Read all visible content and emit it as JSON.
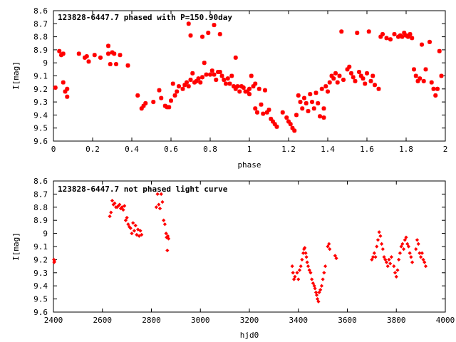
{
  "chart_data": [
    {
      "type": "scatter",
      "title": "123828-6447.7 phased with P=150.90day",
      "xlabel": "phase",
      "ylabel": "I[mag]",
      "xlim": [
        0,
        2
      ],
      "ylim": [
        9.6,
        8.6
      ],
      "y_inverted": true,
      "x_ticks": [
        0,
        0.2,
        0.4,
        0.6,
        0.8,
        1,
        1.2,
        1.4,
        1.6,
        1.8,
        2
      ],
      "x_tick_labels": [
        "0",
        "0.2",
        "0.4",
        "0.6",
        "0.8",
        "1",
        "1.2",
        "1.4",
        "1.6",
        "1.8",
        "2"
      ],
      "y_ticks": [
        8.6,
        8.7,
        8.8,
        8.9,
        9.0,
        9.1,
        9.2,
        9.3,
        9.4,
        9.5,
        9.6
      ],
      "y_tick_labels": [
        "8.6",
        "8.7",
        "8.8",
        "8.9",
        "9",
        "9.1",
        "9.2",
        "9.3",
        "9.4",
        "9.5",
        "9.6"
      ],
      "marker_color": "#ff0000",
      "points": [
        [
          0.01,
          9.19
        ],
        [
          0.03,
          8.91
        ],
        [
          0.04,
          8.94
        ],
        [
          0.05,
          8.93
        ],
        [
          0.05,
          9.15
        ],
        [
          0.06,
          9.22
        ],
        [
          0.07,
          9.2
        ],
        [
          0.07,
          9.26
        ],
        [
          0.13,
          8.93
        ],
        [
          0.16,
          8.96
        ],
        [
          0.17,
          8.95
        ],
        [
          0.18,
          8.99
        ],
        [
          0.21,
          8.94
        ],
        [
          0.24,
          8.96
        ],
        [
          0.28,
          8.93
        ],
        [
          0.28,
          8.87
        ],
        [
          0.29,
          9.01
        ],
        [
          0.3,
          8.92
        ],
        [
          0.31,
          8.93
        ],
        [
          0.32,
          9.01
        ],
        [
          0.34,
          8.94
        ],
        [
          0.38,
          9.02
        ],
        [
          0.43,
          9.25
        ],
        [
          0.45,
          9.35
        ],
        [
          0.46,
          9.33
        ],
        [
          0.47,
          9.31
        ],
        [
          0.51,
          9.3
        ],
        [
          0.54,
          9.21
        ],
        [
          0.55,
          9.27
        ],
        [
          0.57,
          9.33
        ],
        [
          0.58,
          9.34
        ],
        [
          0.59,
          9.34
        ],
        [
          0.6,
          9.29
        ],
        [
          0.61,
          9.16
        ],
        [
          0.62,
          9.25
        ],
        [
          0.63,
          9.22
        ],
        [
          0.64,
          9.18
        ],
        [
          0.66,
          9.2
        ],
        [
          0.67,
          9.17
        ],
        [
          0.68,
          9.15
        ],
        [
          0.69,
          9.18
        ],
        [
          0.69,
          8.7
        ],
        [
          0.7,
          9.13
        ],
        [
          0.7,
          8.79
        ],
        [
          0.71,
          9.08
        ],
        [
          0.72,
          9.15
        ],
        [
          0.73,
          9.14
        ],
        [
          0.74,
          9.12
        ],
        [
          0.75,
          9.15
        ],
        [
          0.76,
          8.8
        ],
        [
          0.76,
          9.11
        ],
        [
          0.77,
          9.0
        ],
        [
          0.78,
          9.09
        ],
        [
          0.79,
          8.77
        ],
        [
          0.8,
          9.09
        ],
        [
          0.81,
          9.06
        ],
        [
          0.82,
          9.09
        ],
        [
          0.82,
          8.71
        ],
        [
          0.83,
          9.13
        ],
        [
          0.84,
          9.07
        ],
        [
          0.85,
          8.78
        ],
        [
          0.85,
          9.07
        ],
        [
          0.86,
          9.1
        ],
        [
          0.87,
          9.13
        ],
        [
          0.88,
          9.16
        ],
        [
          0.89,
          9.12
        ],
        [
          0.9,
          9.16
        ],
        [
          0.91,
          9.1
        ],
        [
          0.92,
          9.18
        ],
        [
          0.93,
          9.2
        ],
        [
          0.93,
          8.96
        ],
        [
          0.94,
          9.18
        ],
        [
          0.95,
          9.22
        ],
        [
          0.96,
          9.18
        ],
        [
          0.97,
          9.19
        ],
        [
          0.98,
          9.22
        ],
        [
          0.99,
          9.22
        ],
        [
          1.0,
          9.2
        ],
        [
          1.0,
          9.24
        ],
        [
          1.01,
          9.1
        ],
        [
          1.02,
          9.18
        ],
        [
          1.03,
          9.16
        ],
        [
          1.03,
          9.35
        ],
        [
          1.04,
          9.38
        ],
        [
          1.05,
          9.2
        ],
        [
          1.06,
          9.32
        ],
        [
          1.07,
          9.39
        ],
        [
          1.08,
          9.21
        ],
        [
          1.09,
          9.38
        ],
        [
          1.1,
          9.36
        ],
        [
          1.11,
          9.43
        ],
        [
          1.12,
          9.45
        ],
        [
          1.13,
          9.47
        ],
        [
          1.14,
          9.49
        ],
        [
          1.17,
          9.38
        ],
        [
          1.19,
          9.42
        ],
        [
          1.2,
          9.45
        ],
        [
          1.21,
          9.47
        ],
        [
          1.22,
          9.5
        ],
        [
          1.23,
          9.52
        ],
        [
          1.24,
          9.4
        ],
        [
          1.25,
          9.25
        ],
        [
          1.26,
          9.3
        ],
        [
          1.27,
          9.35
        ],
        [
          1.28,
          9.27
        ],
        [
          1.29,
          9.31
        ],
        [
          1.3,
          9.37
        ],
        [
          1.31,
          9.24
        ],
        [
          1.32,
          9.3
        ],
        [
          1.33,
          9.35
        ],
        [
          1.34,
          9.23
        ],
        [
          1.35,
          9.31
        ],
        [
          1.36,
          9.41
        ],
        [
          1.37,
          9.2
        ],
        [
          1.38,
          9.35
        ],
        [
          1.38,
          9.42
        ],
        [
          1.39,
          9.18
        ],
        [
          1.4,
          9.22
        ],
        [
          1.41,
          9.15
        ],
        [
          1.42,
          9.1
        ],
        [
          1.43,
          9.12
        ],
        [
          1.44,
          9.08
        ],
        [
          1.45,
          9.15
        ],
        [
          1.46,
          9.1
        ],
        [
          1.47,
          8.76
        ],
        [
          1.48,
          9.13
        ],
        [
          1.5,
          9.05
        ],
        [
          1.51,
          9.03
        ],
        [
          1.52,
          9.08
        ],
        [
          1.53,
          9.11
        ],
        [
          1.54,
          9.14
        ],
        [
          1.55,
          8.77
        ],
        [
          1.56,
          9.07
        ],
        [
          1.57,
          9.1
        ],
        [
          1.58,
          9.12
        ],
        [
          1.59,
          9.16
        ],
        [
          1.6,
          9.08
        ],
        [
          1.61,
          8.76
        ],
        [
          1.62,
          9.14
        ],
        [
          1.63,
          9.1
        ],
        [
          1.64,
          9.17
        ],
        [
          1.66,
          9.2
        ],
        [
          1.67,
          8.8
        ],
        [
          1.68,
          8.78
        ],
        [
          1.7,
          8.81
        ],
        [
          1.72,
          8.82
        ],
        [
          1.74,
          8.78
        ],
        [
          1.76,
          8.8
        ],
        [
          1.77,
          8.79
        ],
        [
          1.78,
          8.8
        ],
        [
          1.79,
          8.77
        ],
        [
          1.8,
          8.79
        ],
        [
          1.81,
          8.8
        ],
        [
          1.82,
          8.78
        ],
        [
          1.83,
          8.81
        ],
        [
          1.84,
          9.05
        ],
        [
          1.85,
          9.1
        ],
        [
          1.86,
          9.14
        ],
        [
          1.87,
          9.12
        ],
        [
          1.88,
          8.86
        ],
        [
          1.89,
          9.14
        ],
        [
          1.9,
          9.05
        ],
        [
          1.92,
          8.84
        ],
        [
          1.93,
          9.15
        ],
        [
          1.94,
          9.2
        ],
        [
          1.95,
          9.25
        ],
        [
          1.96,
          9.2
        ],
        [
          1.97,
          8.91
        ],
        [
          1.98,
          9.1
        ]
      ]
    },
    {
      "type": "scatter",
      "title": "123828-6447.7 not phased light curve",
      "xlabel": "hjd0",
      "ylabel": "I[mag]",
      "xlim": [
        2400,
        4000
      ],
      "ylim": [
        9.6,
        8.6
      ],
      "y_inverted": true,
      "x_ticks": [
        2400,
        2600,
        2800,
        3000,
        3200,
        3400,
        3600,
        3800,
        4000
      ],
      "x_tick_labels": [
        "2400",
        "2600",
        "2800",
        "3000",
        "3200",
        "3400",
        "3600",
        "3800",
        "4000"
      ],
      "y_ticks": [
        8.6,
        8.7,
        8.8,
        8.9,
        9.0,
        9.1,
        9.2,
        9.3,
        9.4,
        9.5,
        9.6
      ],
      "y_tick_labels": [
        "8.6",
        "8.7",
        "8.8",
        "8.9",
        "9",
        "9.1",
        "9.2",
        "9.3",
        "9.4",
        "9.5",
        "9.6"
      ],
      "marker_color": "#ff0000",
      "points": [
        [
          2402,
          9.2
        ],
        [
          2403,
          9.22
        ],
        [
          2404,
          9.21
        ],
        [
          2630,
          8.87
        ],
        [
          2635,
          8.84
        ],
        [
          2640,
          8.75
        ],
        [
          2645,
          8.78
        ],
        [
          2650,
          8.77
        ],
        [
          2655,
          8.8
        ],
        [
          2660,
          8.8
        ],
        [
          2665,
          8.79
        ],
        [
          2670,
          8.78
        ],
        [
          2675,
          8.81
        ],
        [
          2680,
          8.8
        ],
        [
          2685,
          8.82
        ],
        [
          2690,
          8.79
        ],
        [
          2695,
          8.9
        ],
        [
          2700,
          8.88
        ],
        [
          2705,
          8.93
        ],
        [
          2710,
          8.95
        ],
        [
          2715,
          8.96
        ],
        [
          2720,
          9.0
        ],
        [
          2725,
          8.92
        ],
        [
          2730,
          8.98
        ],
        [
          2735,
          8.94
        ],
        [
          2740,
          9.01
        ],
        [
          2745,
          8.97
        ],
        [
          2750,
          9.02
        ],
        [
          2755,
          8.98
        ],
        [
          2760,
          9.01
        ],
        [
          2820,
          8.8
        ],
        [
          2825,
          8.7
        ],
        [
          2830,
          8.78
        ],
        [
          2835,
          8.81
        ],
        [
          2840,
          8.7
        ],
        [
          2845,
          8.76
        ],
        [
          2850,
          8.9
        ],
        [
          2855,
          8.93
        ],
        [
          2860,
          9.0
        ],
        [
          2862,
          9.03
        ],
        [
          2865,
          9.13
        ],
        [
          2867,
          9.02
        ],
        [
          2870,
          9.04
        ],
        [
          3375,
          9.25
        ],
        [
          3378,
          9.3
        ],
        [
          3382,
          9.35
        ],
        [
          3386,
          9.33
        ],
        [
          3395,
          9.3
        ],
        [
          3400,
          9.35
        ],
        [
          3405,
          9.28
        ],
        [
          3410,
          9.25
        ],
        [
          3415,
          9.2
        ],
        [
          3420,
          9.15
        ],
        [
          3423,
          9.12
        ],
        [
          3426,
          9.11
        ],
        [
          3430,
          9.15
        ],
        [
          3433,
          9.18
        ],
        [
          3436,
          9.22
        ],
        [
          3440,
          9.25
        ],
        [
          3445,
          9.28
        ],
        [
          3450,
          9.3
        ],
        [
          3455,
          9.35
        ],
        [
          3460,
          9.38
        ],
        [
          3465,
          9.4
        ],
        [
          3468,
          9.42
        ],
        [
          3472,
          9.45
        ],
        [
          3475,
          9.47
        ],
        [
          3478,
          9.5
        ],
        [
          3482,
          9.52
        ],
        [
          3485,
          9.45
        ],
        [
          3490,
          9.43
        ],
        [
          3495,
          9.4
        ],
        [
          3500,
          9.35
        ],
        [
          3505,
          9.3
        ],
        [
          3510,
          9.25
        ],
        [
          3520,
          9.1
        ],
        [
          3525,
          9.08
        ],
        [
          3528,
          9.12
        ],
        [
          3550,
          9.17
        ],
        [
          3555,
          9.19
        ],
        [
          3700,
          9.2
        ],
        [
          3705,
          9.18
        ],
        [
          3710,
          9.15
        ],
        [
          3715,
          9.18
        ],
        [
          3720,
          9.1
        ],
        [
          3725,
          9.05
        ],
        [
          3730,
          8.99
        ],
        [
          3735,
          9.02
        ],
        [
          3740,
          9.08
        ],
        [
          3745,
          9.12
        ],
        [
          3750,
          9.18
        ],
        [
          3755,
          9.2
        ],
        [
          3760,
          9.22
        ],
        [
          3765,
          9.25
        ],
        [
          3770,
          9.2
        ],
        [
          3775,
          9.23
        ],
        [
          3780,
          9.18
        ],
        [
          3790,
          9.25
        ],
        [
          3795,
          9.3
        ],
        [
          3800,
          9.33
        ],
        [
          3805,
          9.28
        ],
        [
          3810,
          9.2
        ],
        [
          3815,
          9.15
        ],
        [
          3820,
          9.1
        ],
        [
          3825,
          9.08
        ],
        [
          3830,
          9.12
        ],
        [
          3835,
          9.05
        ],
        [
          3840,
          9.03
        ],
        [
          3845,
          9.08
        ],
        [
          3850,
          9.1
        ],
        [
          3855,
          9.15
        ],
        [
          3860,
          9.18
        ],
        [
          3865,
          9.22
        ],
        [
          3880,
          9.12
        ],
        [
          3885,
          9.05
        ],
        [
          3890,
          9.08
        ],
        [
          3895,
          9.15
        ],
        [
          3900,
          9.18
        ],
        [
          3905,
          9.15
        ],
        [
          3910,
          9.2
        ],
        [
          3915,
          9.22
        ],
        [
          3920,
          9.25
        ]
      ]
    }
  ]
}
